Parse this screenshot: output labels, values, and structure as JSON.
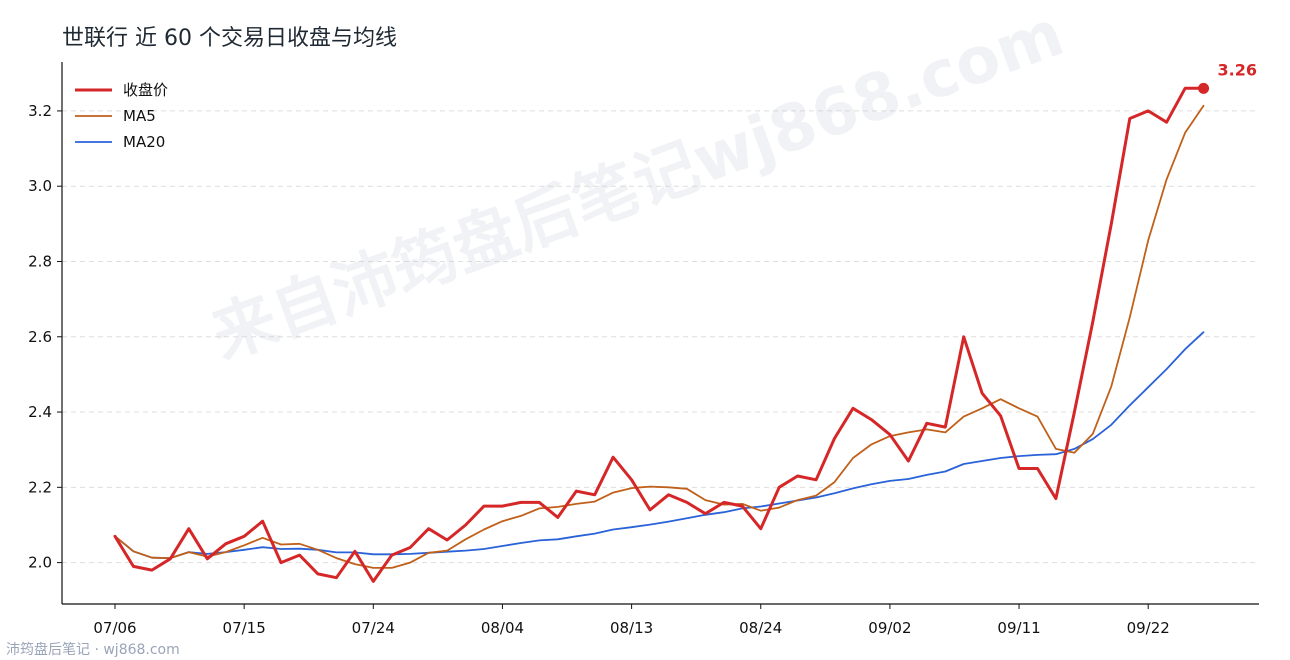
{
  "chart_data": {
    "type": "line",
    "title": "世联行 近 60 个交易日收盘与均线",
    "xlabel": "",
    "ylabel": "",
    "ylim": [
      1.89,
      3.33
    ],
    "yticks": [
      "2.0",
      "2.2",
      "2.4",
      "2.6",
      "2.8",
      "3.0",
      "3.2"
    ],
    "xticks": [
      {
        "label": "07/06",
        "index": 0
      },
      {
        "label": "07/15",
        "index": 7
      },
      {
        "label": "07/24",
        "index": 14
      },
      {
        "label": "08/04",
        "index": 21
      },
      {
        "label": "08/13",
        "index": 28
      },
      {
        "label": "08/24",
        "index": 35
      },
      {
        "label": "09/02",
        "index": 42
      },
      {
        "label": "09/11",
        "index": 49
      },
      {
        "label": "09/22",
        "index": 56
      }
    ],
    "grid": "horizontal dashed",
    "legend": "top-left",
    "series": [
      {
        "name": "收盘价",
        "color": "#d62728",
        "values": [
          2.07,
          1.99,
          1.98,
          2.01,
          2.09,
          2.01,
          2.05,
          2.07,
          2.11,
          2.0,
          2.02,
          1.97,
          1.96,
          2.03,
          1.95,
          2.02,
          2.04,
          2.09,
          2.06,
          2.1,
          2.15,
          2.15,
          2.16,
          2.16,
          2.12,
          2.19,
          2.18,
          2.28,
          2.22,
          2.14,
          2.18,
          2.16,
          2.13,
          2.16,
          2.15,
          2.09,
          2.2,
          2.23,
          2.22,
          2.33,
          2.41,
          2.38,
          2.34,
          2.27,
          2.37,
          2.36,
          2.6,
          2.45,
          2.39,
          2.25,
          2.25,
          2.17,
          2.4,
          2.64,
          2.9,
          3.18,
          3.2,
          3.17,
          3.26,
          3.26
        ]
      },
      {
        "name": "MA5",
        "color": "#c0601a",
        "values": [
          2.07,
          2.03,
          2.013,
          2.012,
          2.028,
          2.016,
          2.028,
          2.046,
          2.066,
          2.048,
          2.05,
          2.034,
          2.012,
          1.996,
          1.986,
          1.986,
          2.0,
          2.026,
          2.032,
          2.062,
          2.088,
          2.11,
          2.124,
          2.144,
          2.148,
          2.156,
          2.162,
          2.186,
          2.198,
          2.202,
          2.2,
          2.196,
          2.166,
          2.154,
          2.156,
          2.138,
          2.146,
          2.166,
          2.178,
          2.214,
          2.278,
          2.314,
          2.336,
          2.346,
          2.354,
          2.346,
          2.388,
          2.41,
          2.434,
          2.41,
          2.388,
          2.302,
          2.292,
          2.342,
          2.468,
          2.652,
          2.856,
          3.018,
          3.142,
          3.214
        ]
      },
      {
        "name": "MA20",
        "color": "#2a62d8",
        "values": [
          2.07,
          2.03,
          2.013,
          2.012,
          2.028,
          2.023,
          2.028,
          2.034,
          2.041,
          2.036,
          2.037,
          2.034,
          2.027,
          2.027,
          2.022,
          2.022,
          2.023,
          2.026,
          2.029,
          2.032,
          2.036,
          2.044,
          2.052,
          2.059,
          2.062,
          2.07,
          2.077,
          2.088,
          2.094,
          2.101,
          2.109,
          2.118,
          2.127,
          2.134,
          2.144,
          2.149,
          2.157,
          2.165,
          2.173,
          2.184,
          2.197,
          2.208,
          2.217,
          2.222,
          2.233,
          2.242,
          2.262,
          2.27,
          2.278,
          2.283,
          2.286,
          2.288,
          2.302,
          2.328,
          2.366,
          2.418,
          2.466,
          2.514,
          2.567,
          2.612
        ]
      }
    ],
    "last_value_label": "3.26",
    "last_value_color": "#d62728"
  },
  "watermark": "来自沛筠盘后笔记wj868.com",
  "footer": "沛筠盘后笔记 · wj868.com"
}
